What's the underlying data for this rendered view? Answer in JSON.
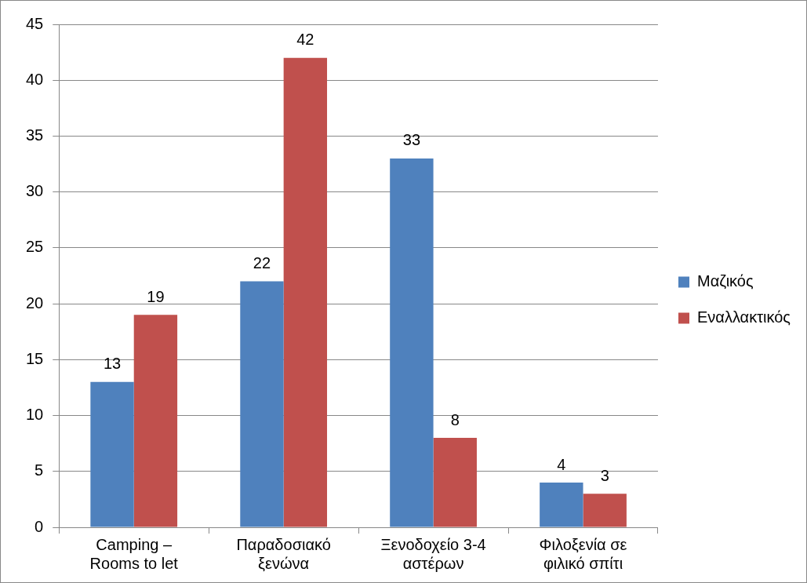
{
  "chart_data": {
    "type": "bar",
    "categories": [
      "Camping – Rooms to let",
      "Παραδοσιακό ξενώνα",
      "Ξενοδοχείο 3-4 αστέρων",
      "Φιλοξενία σε φιλικό σπίτι"
    ],
    "series": [
      {
        "name": "Μαζικός",
        "color": "#4f81bd",
        "values": [
          13,
          22,
          33,
          4
        ]
      },
      {
        "name": "Εναλλακτικός",
        "color": "#c0504d",
        "values": [
          19,
          42,
          8,
          3
        ]
      }
    ],
    "ylim": [
      0,
      45
    ],
    "yticks": [
      0,
      5,
      10,
      15,
      20,
      25,
      30,
      35,
      40,
      45
    ],
    "grid": "y",
    "legend": "right",
    "data_labels": true
  }
}
